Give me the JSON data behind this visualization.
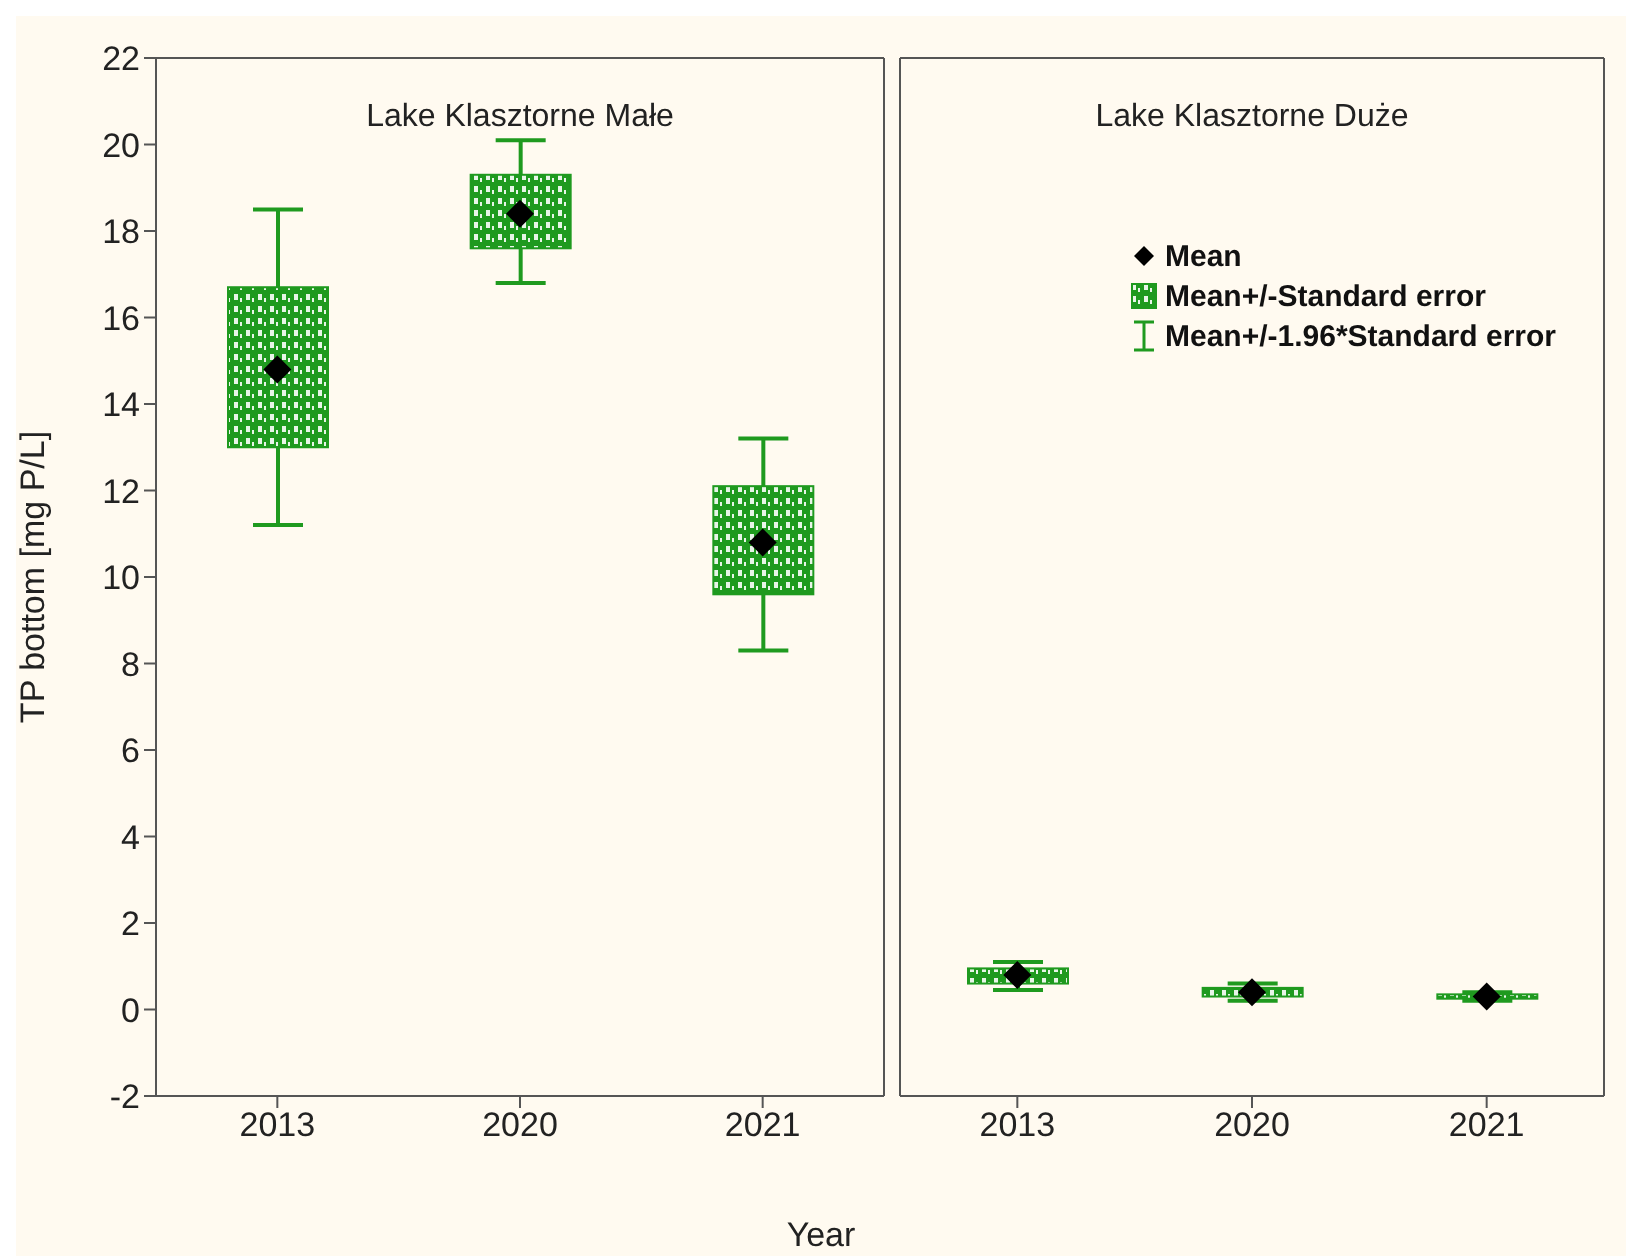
{
  "chart_data": [
    {
      "type": "box",
      "title": "Lake Klasztorne Małe",
      "ylabel": "TP bottom [mg P/L]",
      "xlabel": "Year",
      "categories": [
        "2013",
        "2020",
        "2021"
      ],
      "color": "#1f9a1f",
      "marker": "diamond",
      "ylim": [
        -2,
        22
      ],
      "yticks": [
        -2,
        0,
        2,
        4,
        6,
        8,
        10,
        12,
        14,
        16,
        18,
        20,
        22
      ],
      "boxes": [
        {
          "low": 11.2,
          "q1": 13.0,
          "q3": 16.7,
          "high": 18.5,
          "mean": 14.8
        },
        {
          "low": 16.8,
          "q1": 17.6,
          "q3": 19.3,
          "high": 20.1,
          "mean": 18.4
        },
        {
          "low": 8.3,
          "q1": 9.6,
          "q3": 12.1,
          "high": 13.2,
          "mean": 10.8
        }
      ]
    },
    {
      "type": "box",
      "title": "Lake Klasztorne Duże",
      "categories": [
        "2013",
        "2020",
        "2021"
      ],
      "color": "#1f9a1f",
      "marker": "diamond",
      "ylim": [
        -2,
        22
      ],
      "yticks": [
        -2,
        0,
        2,
        4,
        6,
        8,
        10,
        12,
        14,
        16,
        18,
        20,
        22
      ],
      "tick_labels": "x",
      "annotations": [
        "Mean",
        "Mean+/-Standard error",
        "Mean+/-1.96*Standard error"
      ],
      "boxes": [
        {
          "low": 0.45,
          "q1": 0.6,
          "q3": 0.95,
          "high": 1.1,
          "mean": 0.8
        },
        {
          "low": 0.2,
          "q1": 0.3,
          "q3": 0.5,
          "high": 0.6,
          "mean": 0.4
        },
        {
          "low": 0.2,
          "q1": 0.25,
          "q3": 0.35,
          "high": 0.4,
          "mean": 0.3
        }
      ]
    }
  ]
}
